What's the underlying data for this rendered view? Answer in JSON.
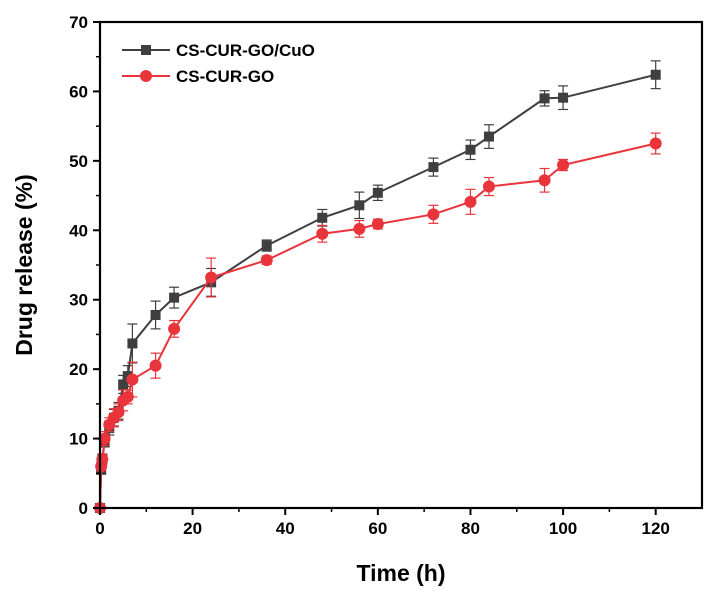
{
  "chart_data": {
    "type": "line",
    "xlabel": "Time (h)",
    "ylabel": "Drug release (%)",
    "xlim": [
      0,
      130
    ],
    "ylim": [
      0,
      70
    ],
    "xticks": [
      0,
      20,
      40,
      60,
      80,
      100,
      120
    ],
    "yticks": [
      0,
      10,
      20,
      30,
      40,
      50,
      60,
      70
    ],
    "legend_position": "top-left",
    "series": [
      {
        "name": "CS-CUR-GO/CuO",
        "color": "#3f3f3f",
        "marker": "square",
        "x": [
          0,
          0.25,
          0.5,
          1,
          2,
          3,
          4,
          5,
          6,
          7,
          12,
          16,
          24,
          36,
          48,
          56,
          60,
          72,
          80,
          84,
          96,
          100,
          120
        ],
        "y": [
          0,
          5.5,
          7,
          9.5,
          11.5,
          13,
          14,
          17.8,
          19,
          23.7,
          27.8,
          30.3,
          32.5,
          37.8,
          41.8,
          43.6,
          45.4,
          49.1,
          51.6,
          53.5,
          59,
          59.1,
          62.4
        ],
        "err": [
          0,
          0.5,
          0.6,
          0.7,
          1,
          1.2,
          1.2,
          1.3,
          1.5,
          2.8,
          2,
          1.5,
          2,
          0.8,
          1.2,
          1.9,
          1.1,
          1.3,
          1.4,
          1.7,
          1.1,
          1.7,
          2
        ]
      },
      {
        "name": "CS-CUR-GO",
        "color": "#e8343a",
        "marker": "circle",
        "x": [
          0,
          0.25,
          0.5,
          1,
          2,
          3,
          4,
          5,
          6,
          7,
          12,
          16,
          24,
          36,
          48,
          56,
          60,
          72,
          80,
          84,
          96,
          100,
          120
        ],
        "y": [
          0,
          6,
          7,
          10,
          12,
          13,
          13.8,
          15.5,
          16,
          18.5,
          20.5,
          25.8,
          33.2,
          35.7,
          39.5,
          40.2,
          40.9,
          42.3,
          44.1,
          46.3,
          47.2,
          49.4,
          52.5
        ],
        "err": [
          0,
          0.6,
          0.8,
          1,
          1,
          1.3,
          1.2,
          1.5,
          1,
          2.5,
          1.8,
          1.2,
          2.8,
          0.6,
          1.2,
          1.2,
          0.7,
          1.3,
          1.8,
          1.3,
          1.7,
          0.8,
          1.5
        ]
      }
    ]
  }
}
